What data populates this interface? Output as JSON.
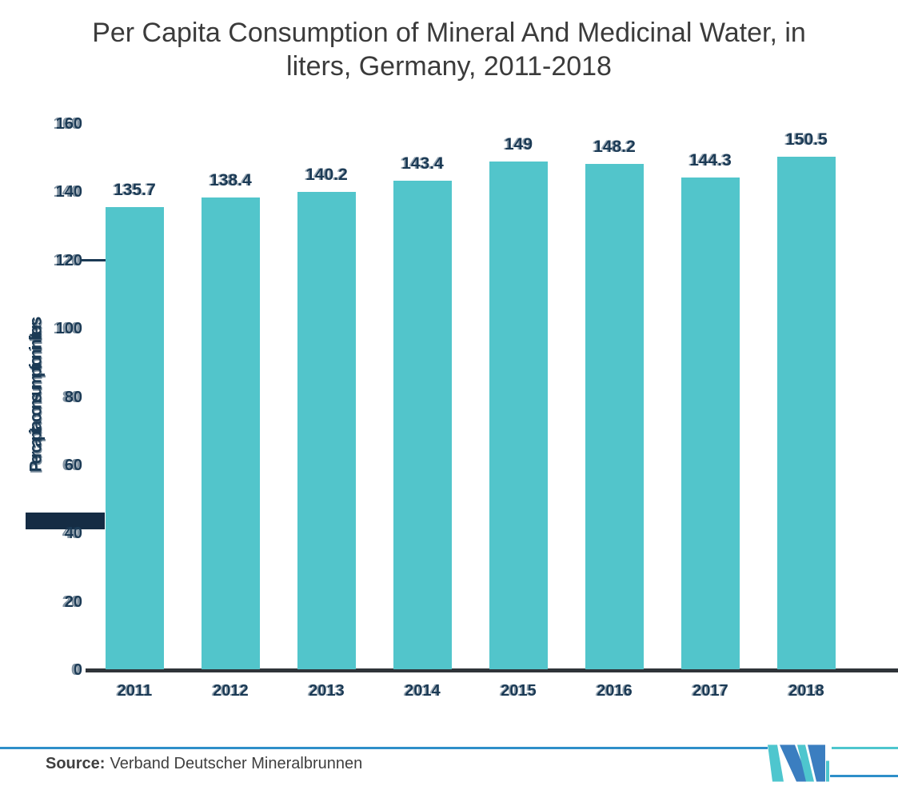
{
  "header": {
    "line1": "Per Capita Consumption of Mineral And Medicinal Water, in",
    "line2": "liters, Germany, 2011-2018"
  },
  "chart_data": {
    "type": "bar",
    "title": "Per Capita Consumption of Mineral And Medicinal Water, in liters, Germany, 2011-2018",
    "categories": [
      "2011",
      "2012",
      "2013",
      "2014",
      "2015",
      "2016",
      "2017",
      "2018"
    ],
    "values": [
      135.7,
      138.4,
      140.2,
      143.4,
      149,
      148.2,
      144.3,
      150.5
    ],
    "value_labels": [
      "135.7",
      "138.4",
      "140.2",
      "143.4",
      "149",
      "148.2",
      "144.3",
      "150.5"
    ],
    "xlabel": "",
    "ylabel": "Per capita consumption in liters",
    "ylim": [
      0,
      160
    ],
    "yticks": [
      0,
      20,
      40,
      60,
      80,
      100,
      120,
      140,
      160
    ],
    "grid": false,
    "legend": false,
    "colors": {
      "bar_fill": "#52c5cb",
      "tick_and_label_text": "#1b3a55",
      "title_text": "#3b3b3b",
      "axis_baseline": "#2f3439"
    }
  },
  "footer": {
    "source_label": "Source:",
    "source_text": "Verband Deutscher Mineralbrunnen",
    "divider_color": "#2e8fc9",
    "logo": {
      "name": "mordor-intelligence-logo",
      "blue": "#3b7ec0",
      "teal": "#4ec6ce"
    }
  }
}
